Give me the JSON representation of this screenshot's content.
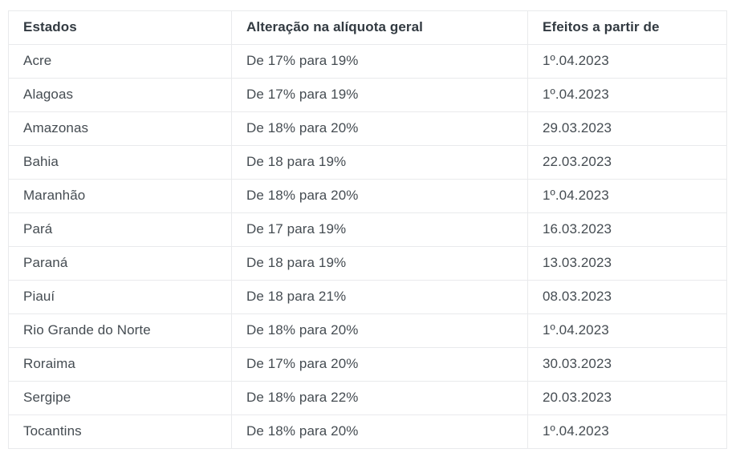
{
  "table": {
    "headers": [
      "Estados",
      "Alteração na alíquota geral",
      "Efeitos a partir de"
    ],
    "rows": [
      [
        "Acre",
        "De 17% para 19%",
        "1º.04.2023"
      ],
      [
        "Alagoas",
        "De 17% para 19%",
        "1º.04.2023"
      ],
      [
        "Amazonas",
        "De 18% para 20%",
        "29.03.2023"
      ],
      [
        "Bahia",
        "De 18 para 19%",
        "22.03.2023"
      ],
      [
        "Maranhão",
        "De 18% para 20%",
        "1º.04.2023"
      ],
      [
        "Pará",
        "De 17 para 19%",
        "16.03.2023"
      ],
      [
        "Paraná",
        "De 18 para 19%",
        "13.03.2023"
      ],
      [
        "Piauí",
        "De 18 para 21%",
        "08.03.2023"
      ],
      [
        "Rio Grande do Norte",
        "De 18% para 20%",
        "1º.04.2023"
      ],
      [
        "Roraima",
        "De 17% para 20%",
        "30.03.2023"
      ],
      [
        "Sergipe",
        "De 18% para 22%",
        "20.03.2023"
      ],
      [
        "Tocantins",
        "De 18% para 20%",
        "1º.04.2023"
      ]
    ]
  },
  "colors": {
    "background": "#ffffff",
    "body_text": "#454c52",
    "header_text": "#323a41",
    "border": "#e9eaec"
  }
}
